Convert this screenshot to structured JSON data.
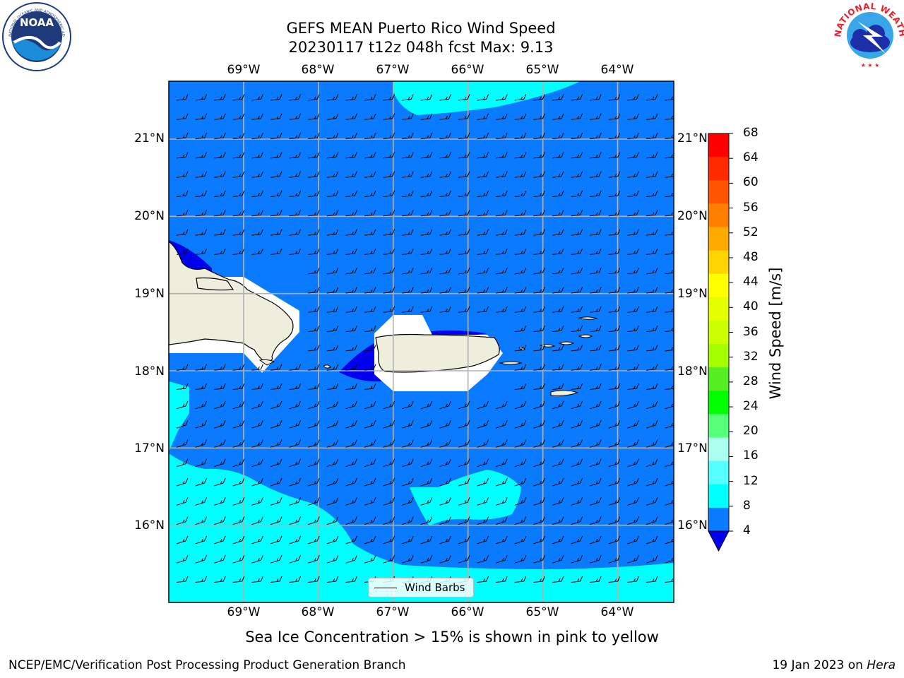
{
  "title": {
    "line1": "GEFS MEAN Puerto Rico Wind Speed",
    "line2": "20230117 t12z 048h fcst   Max: 9.13"
  },
  "logos": {
    "noaa_text": "NOAA",
    "noaa_ring_text": "NATIONAL OCEANIC AND ATMOSPHERIC ADMINISTRATION · U.S. DEPARTMENT OF COMMERCE",
    "nws_ring_text": "NATIONAL WEATHER SERVICE"
  },
  "map": {
    "lon_labels": [
      "69°W",
      "68°W",
      "67°W",
      "66°W",
      "65°W",
      "64°W"
    ],
    "lat_labels": [
      "21°N",
      "20°N",
      "19°N",
      "18°N",
      "17°N",
      "16°N"
    ],
    "lon_range": [
      -70.0,
      -63.25
    ],
    "lat_range": [
      15.0,
      21.75
    ],
    "colors": {
      "ocean": "#0a7bff",
      "ocean_light": "#00ffff",
      "ocean_dark": "#0000ee",
      "land": "#eeeedd",
      "grid": "#b0b0b0"
    },
    "legend_label": "Wind Barbs"
  },
  "colorbar": {
    "label": "Wind Speed [m/s]",
    "ticks": [
      "68",
      "64",
      "60",
      "56",
      "52",
      "48",
      "44",
      "40",
      "36",
      "32",
      "28",
      "24",
      "20",
      "16",
      "12",
      "8",
      "4"
    ],
    "colors": [
      "#ff0000",
      "#ff2a00",
      "#ff5500",
      "#ff8000",
      "#ffaa00",
      "#ffd400",
      "#ffff00",
      "#e6ff00",
      "#ccff00",
      "#a6ff00",
      "#55ee22",
      "#00ff00",
      "#55ff77",
      "#aaffee",
      "#55ffff",
      "#00ffff",
      "#0a7bff",
      "#0000ee"
    ]
  },
  "note": "Sea Ice Concentration > 15% is shown in pink to yellow",
  "footer": {
    "left": "NCEP/EMC/Verification Post Processing Product Generation Branch",
    "right_prefix": "19 Jan 2023 on",
    "right_italic": "Hera"
  }
}
